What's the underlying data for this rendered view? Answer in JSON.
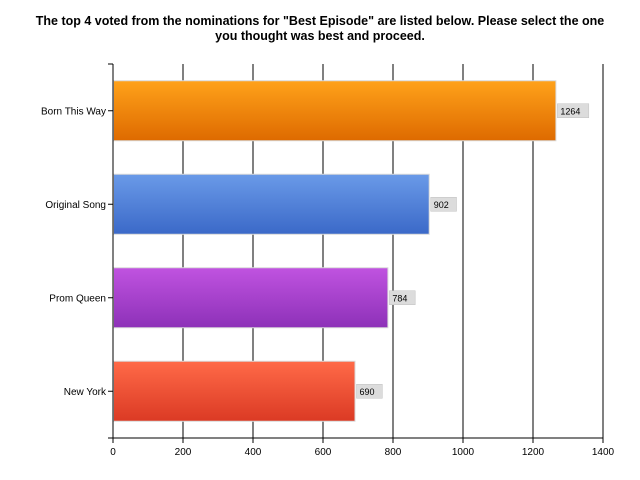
{
  "chart_data": {
    "type": "bar",
    "orientation": "horizontal",
    "title_lines": [
      "The top 4 voted from the nominations for \"Best Episode\" are listed below. Please select the one",
      "you thought was best and proceed."
    ],
    "categories": [
      "Born This Way",
      "Original Song",
      "Prom Queen",
      "New York"
    ],
    "values": [
      1264,
      902,
      784,
      690
    ],
    "data_labels": [
      "1264",
      "902",
      "784",
      "690"
    ],
    "bar_colors": [
      {
        "light": "#ffa21a",
        "dark": "#de6a00"
      },
      {
        "light": "#6a9ae8",
        "dark": "#3b69c8"
      },
      {
        "light": "#c053e0",
        "dark": "#8d31b8"
      },
      {
        "light": "#ff6a48",
        "dark": "#db3a24"
      }
    ],
    "x_ticks": [
      0,
      200,
      400,
      600,
      800,
      1000,
      1200,
      1400
    ],
    "x_tick_labels": [
      "0",
      "200",
      "400",
      "600",
      "800",
      "1000",
      "1200",
      "1400"
    ],
    "xlim": [
      0,
      1400
    ],
    "xlabel": "",
    "ylabel": "",
    "grid": true,
    "legend": "none"
  }
}
